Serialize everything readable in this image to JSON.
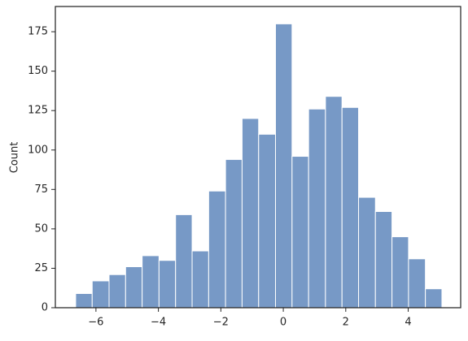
{
  "chart_data": {
    "type": "histogram",
    "ylabel": "Count",
    "bins": [
      -6.65,
      -6.12,
      -5.58,
      -5.05,
      -4.52,
      -3.98,
      -3.45,
      -2.92,
      -2.39,
      -1.85,
      -1.32,
      -0.79,
      -0.25,
      0.28,
      0.81,
      1.35,
      1.88,
      2.41,
      2.95,
      3.48,
      4.01,
      4.55,
      5.08
    ],
    "values": [
      9,
      17,
      21,
      26,
      33,
      30,
      59,
      36,
      74,
      94,
      120,
      110,
      180,
      96,
      126,
      134,
      127,
      70,
      61,
      45,
      31,
      12
    ],
    "color": "#7799c6",
    "xlim": [
      -7.3,
      5.68
    ],
    "xticks": [
      {
        "value": -6,
        "label": "−6"
      },
      {
        "value": -4,
        "label": "−4"
      },
      {
        "value": -2,
        "label": "−2"
      },
      0,
      2,
      4
    ],
    "ylim": [
      0,
      191
    ],
    "yticks": [
      0,
      25,
      50,
      75,
      100,
      125,
      150,
      175
    ]
  }
}
